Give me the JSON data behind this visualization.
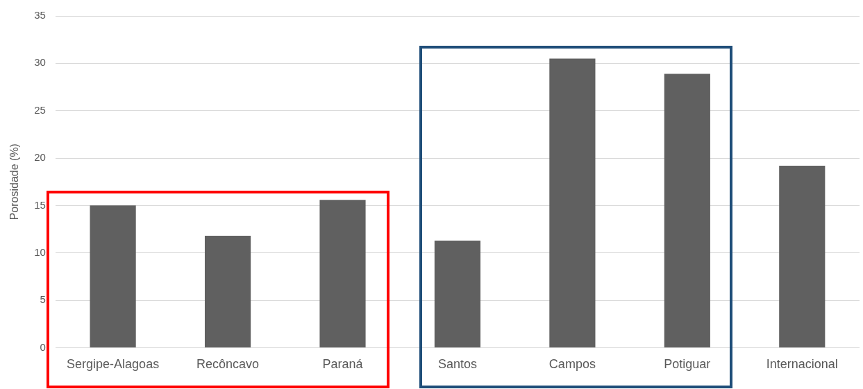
{
  "chart_data": {
    "type": "bar",
    "ylabel": "Porosidade (%)",
    "categories": [
      "Sergipe-Alagoas",
      "Recôncavo",
      "Paraná",
      "Santos",
      "Campos",
      "Potiguar",
      "Internacional"
    ],
    "values": [
      15.0,
      11.8,
      15.6,
      11.3,
      30.5,
      28.9,
      19.2
    ],
    "color": "#606060",
    "ylim": [
      0,
      35
    ],
    "yticks": [
      0,
      5,
      10,
      15,
      20,
      25,
      30,
      35
    ],
    "grid": "y",
    "legend": false
  }
}
